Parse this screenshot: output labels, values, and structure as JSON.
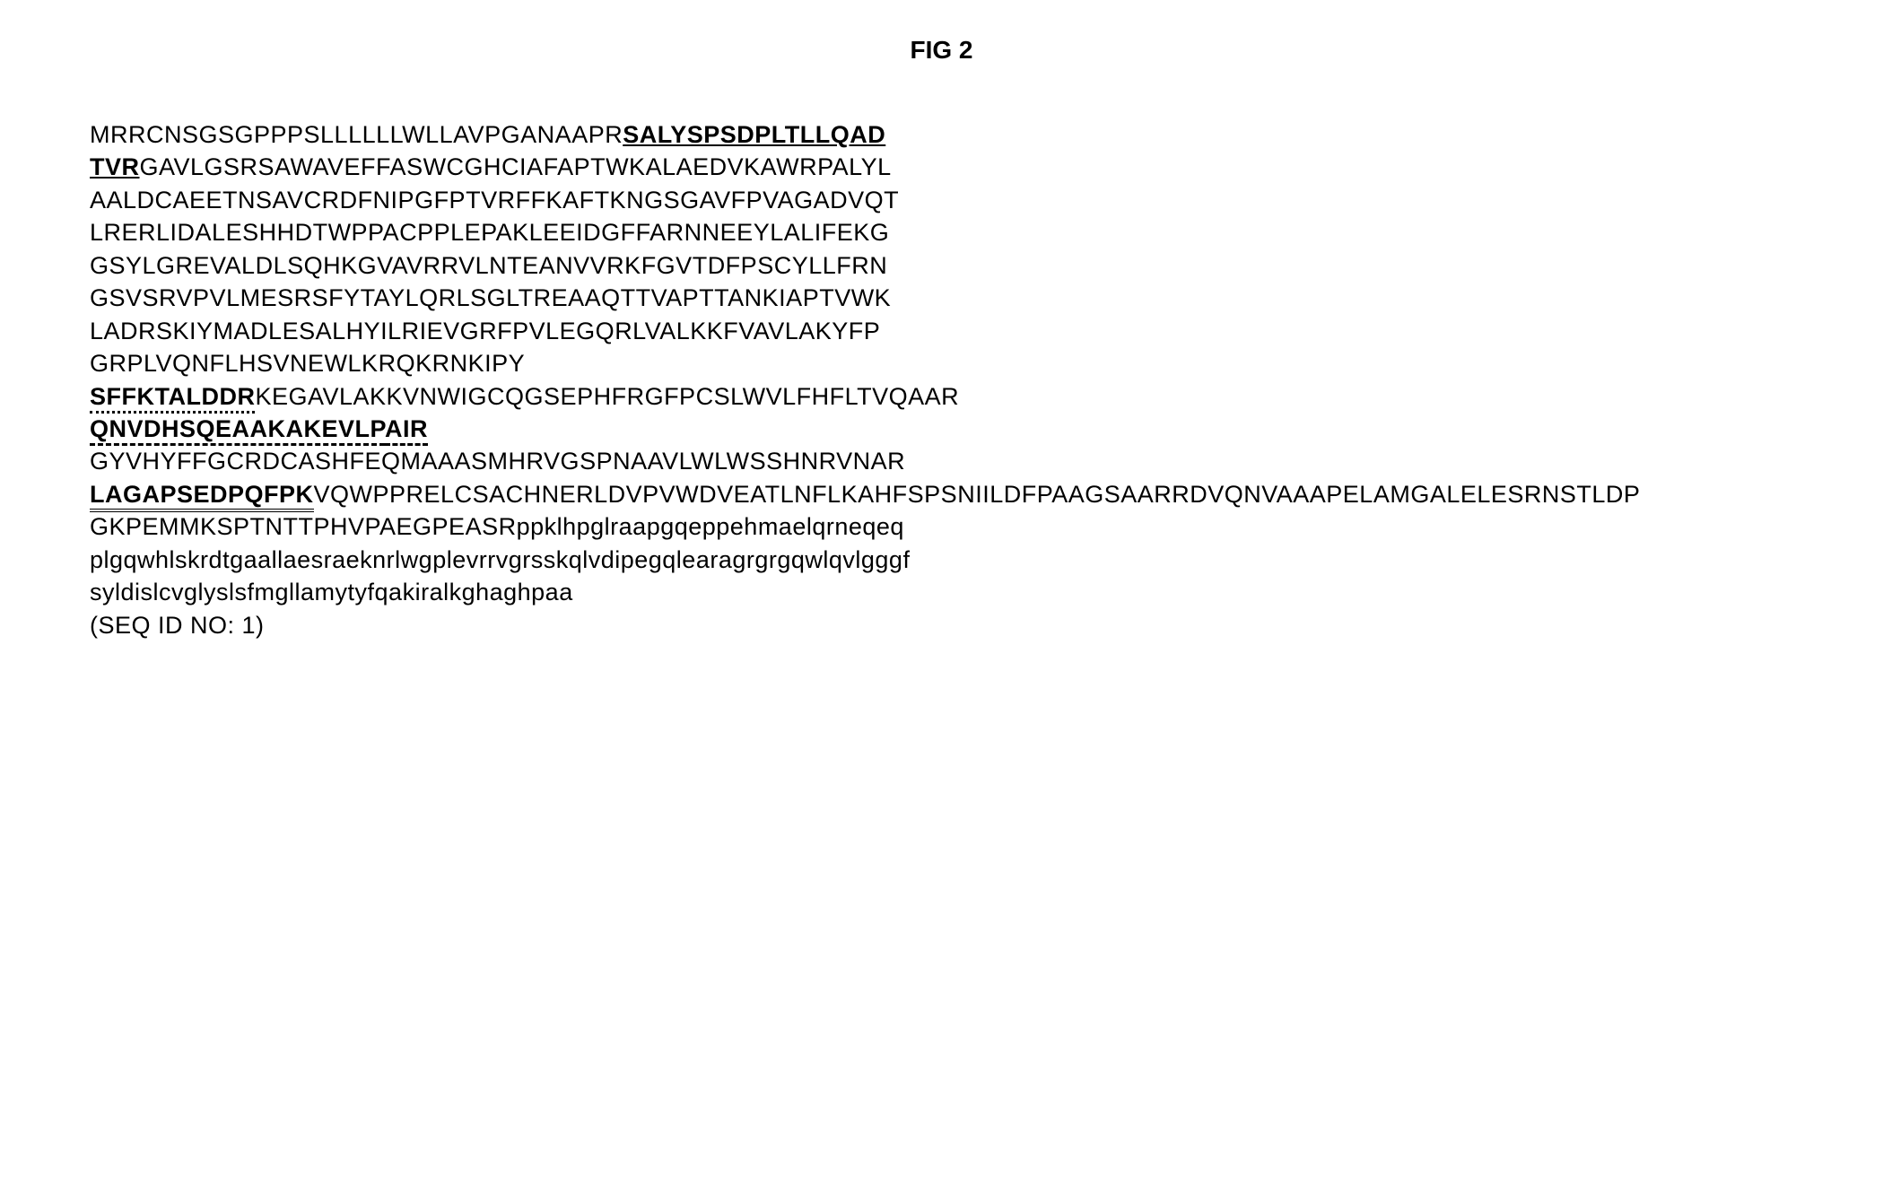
{
  "figure": {
    "title": "FIG 2",
    "seq_id_label": " (SEQ ID NO: 1)",
    "segments": [
      {
        "text": "MRRCNSGSGPPPSLLLLLLWLLAVPGANAAPR",
        "style": "plain"
      },
      {
        "text": "SALYSPSDPLTLLQAD",
        "style": "bold-underline"
      },
      {
        "text": "TVR",
        "style": "bold-underline"
      },
      {
        "text": "GAVLGSRSAWAVEFFASWCGHCIAFAPTWKALAEDVKAWRPALYL",
        "style": "plain"
      },
      {
        "text": "AALDCAEETNSAVCRDFNIPGFPTVRFFKAFTKNGSGAVFPVAGADVQT",
        "style": "plain"
      },
      {
        "text": "LRERLIDALESHHDTWPPACPPLEPAKLEEIDGFFARNNEEYLALIFEKG",
        "style": "plain"
      },
      {
        "text": "GSYLGREVALDLSQHKGVAVRRVLNTEANVVRKFGVTDFPSCYLLFRN",
        "style": "plain"
      },
      {
        "text": "GSVSRVPVLMESRSFYTAYLQRLSGLTREAAQTTVAPTTANKIAPTVWK",
        "style": "plain"
      },
      {
        "text": "LADRSKIYMADLESALHYILRIEVGRFPVLEGQRLVALKKFVAVLAKYFP",
        "style": "plain"
      },
      {
        "text": "GRPLVQNFLHSVNEWLKRQKRNKIPY",
        "style": "plain"
      },
      {
        "text": "SFFKTALDDR",
        "style": "bold-dotted"
      },
      {
        "text": "KEGAVLAKKVNW",
        "style": "plain"
      },
      {
        "text": "IGCQGSEPHFRGFPCSLWVLFHFLTVQAAR",
        "style": "plain"
      },
      {
        "text": "QNVDHSQEAAKAKEVLP",
        "style": "bold-dashed"
      },
      {
        "text": "AIR",
        "style": "bold-dashed"
      },
      {
        "text": "GYVHYFFGCRDCASHFEQMAAASMHRVGSPNAAVLWLWSSHNRV",
        "style": "plain"
      },
      {
        "text": "NAR",
        "style": "plain"
      },
      {
        "text": "LAGAPSEDPQFPK",
        "style": "bold-double"
      },
      {
        "text": "VQWPPRELCSACHNERLDVPVWDVEATLNFL",
        "style": "plain"
      },
      {
        "text": "KAHFSPSNIILDFPAAGSAARRDVQNVAAAPELAMGALELESRNSTLDP",
        "style": "plain"
      },
      {
        "text": "GKPEMMKSPTNTTPHVPAEGPEASRppklhpglraapgqeppehmaelqrneqeq",
        "style": "plain"
      },
      {
        "text": "plgqwhlskrdtgaallaesraeknrlwgplevrrvgrsskqlvdipegqlearagrgrgqwlqvlgggf",
        "style": "plain"
      },
      {
        "text": "syldislcvglyslsfmgllamytyfqakiralkghaghpaa",
        "style": "plain"
      }
    ],
    "line_breaks_after_indices": [
      1,
      3,
      4,
      5,
      6,
      7,
      8,
      9,
      12,
      14,
      16,
      19,
      20,
      21,
      22
    ]
  },
  "styling": {
    "background_color": "#ffffff",
    "text_color": "#000000",
    "title_fontsize": 28,
    "body_fontsize": 27,
    "line_height": 1.35
  }
}
